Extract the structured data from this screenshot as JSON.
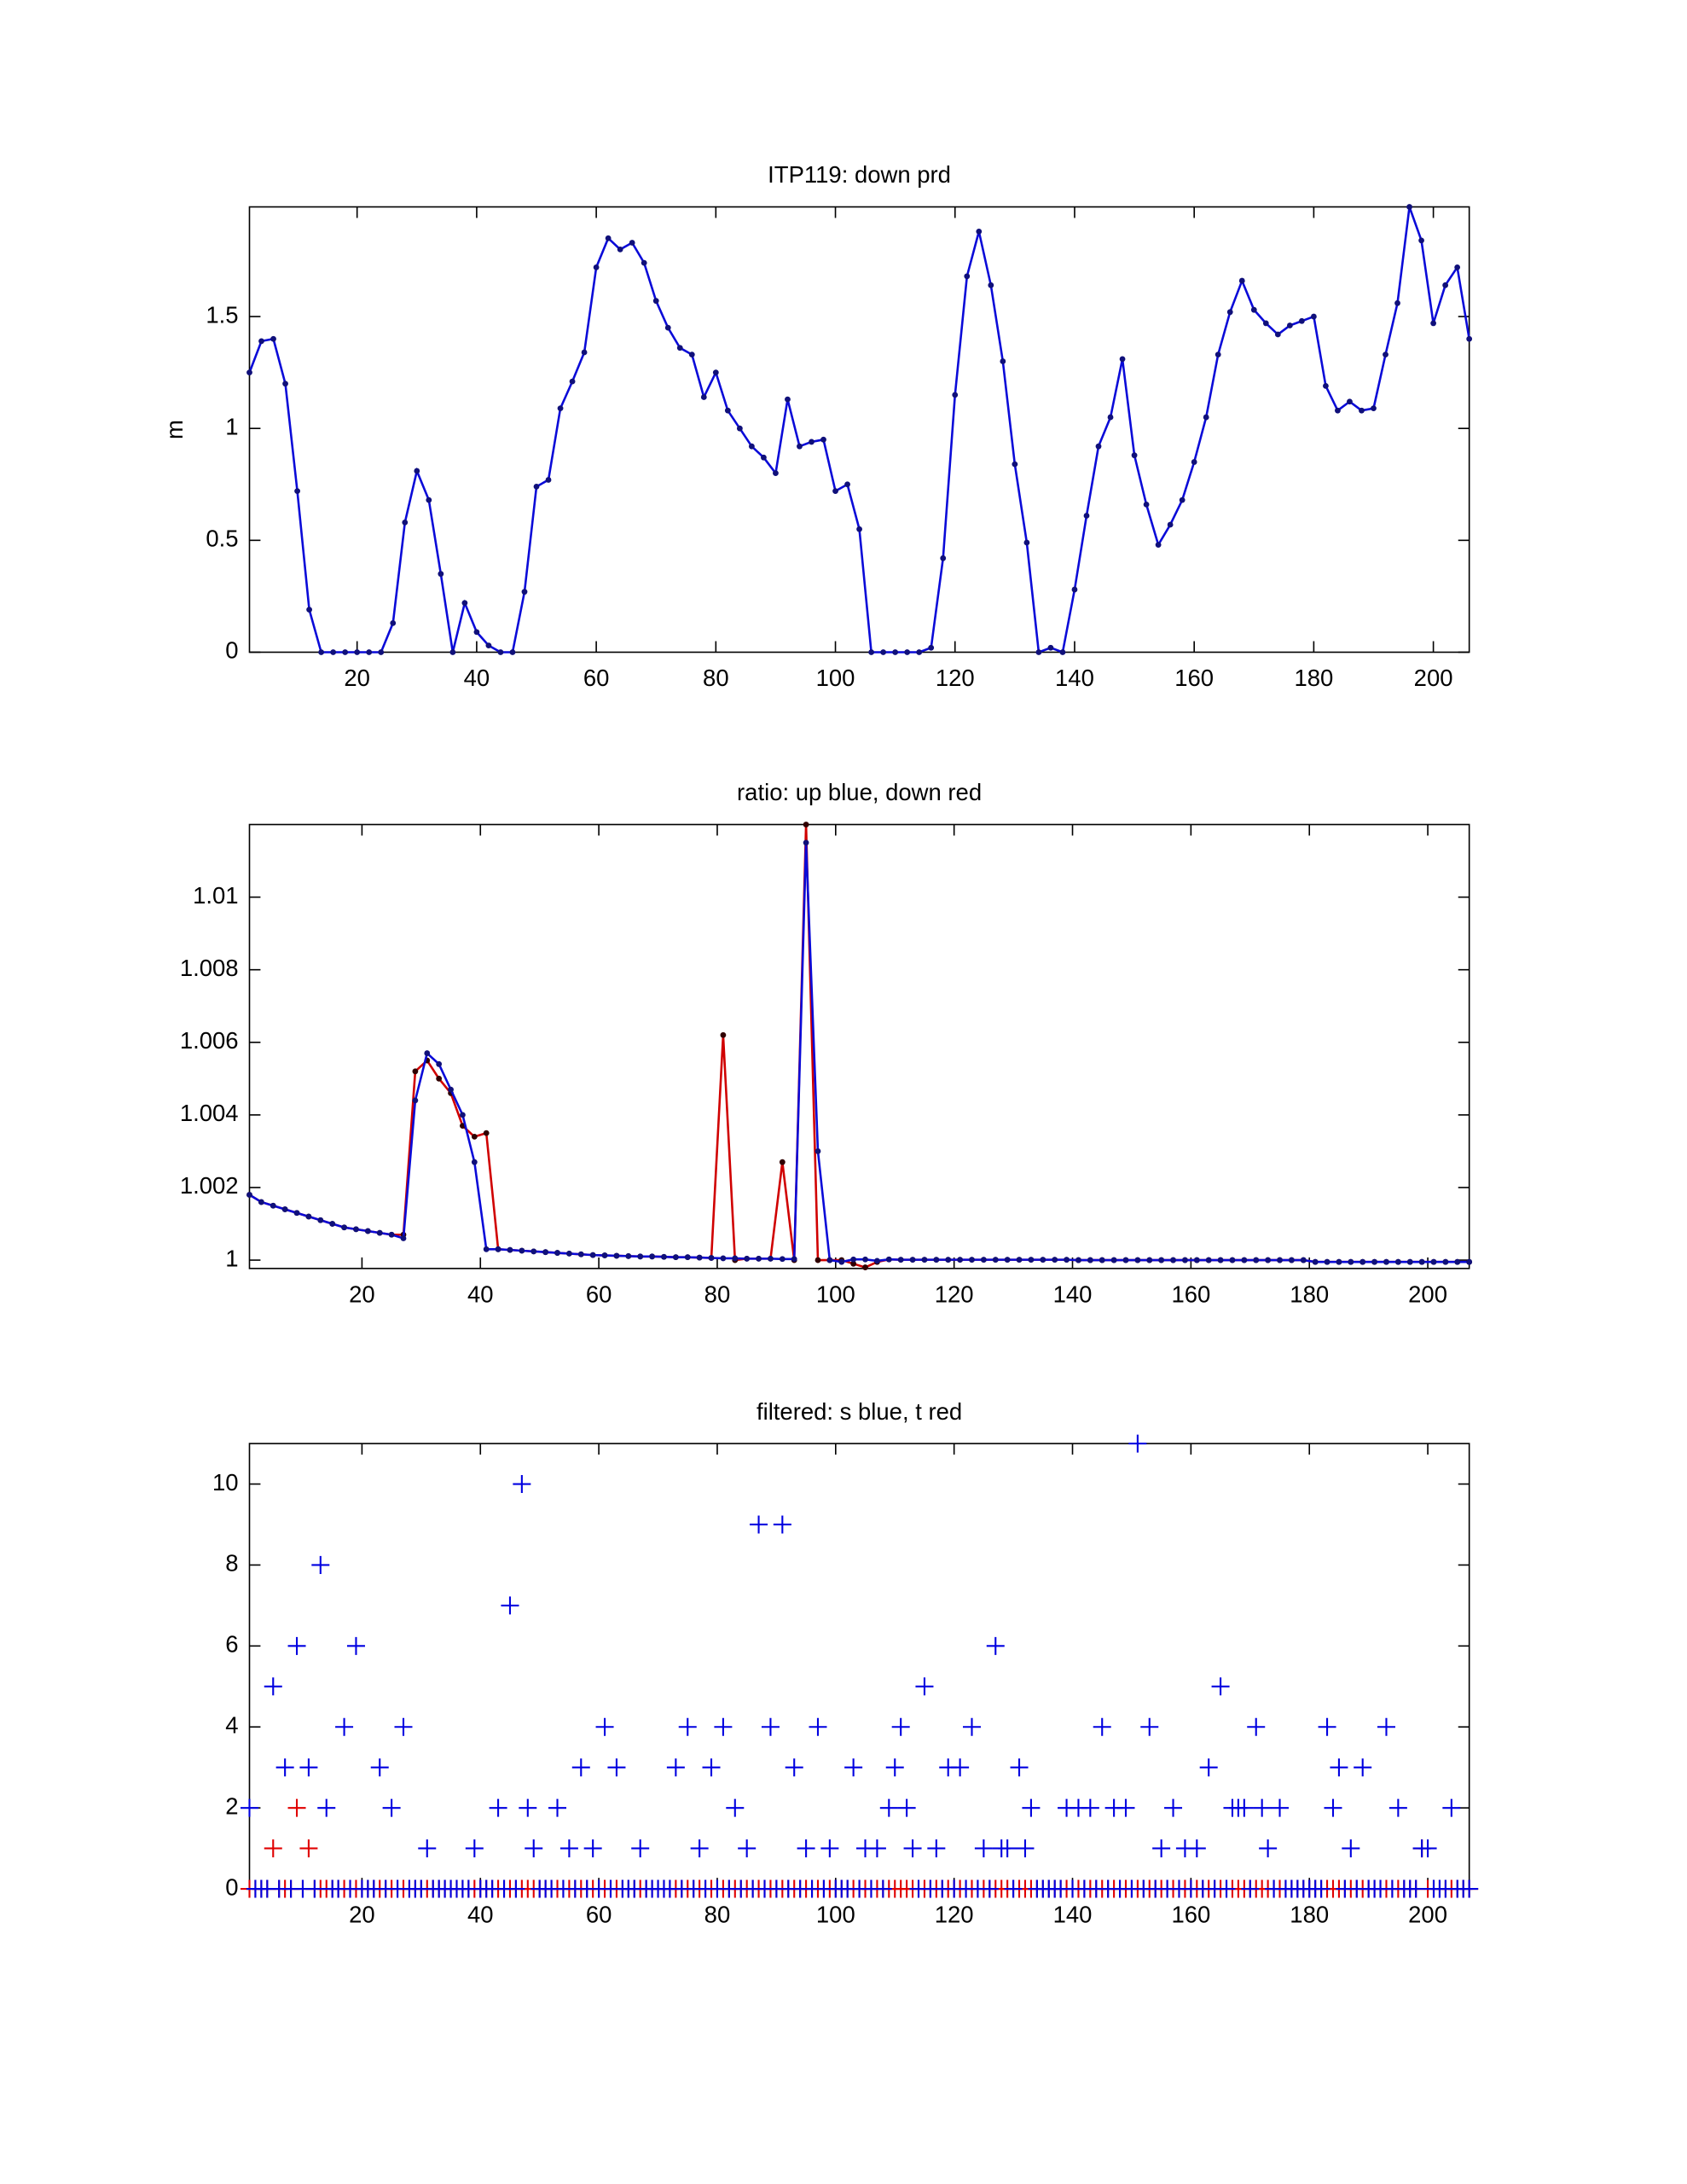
{
  "chart_data": [
    {
      "type": "line",
      "title": "ITP119: down prd",
      "y_label": "m",
      "xlim": [
        2,
        206
      ],
      "ylim": [
        0,
        1.99
      ],
      "xticks": [
        20,
        40,
        60,
        80,
        100,
        120,
        140,
        160,
        180,
        200
      ],
      "yticks": [
        0,
        0.5,
        1,
        1.5
      ],
      "x": [
        2,
        4,
        6,
        8,
        10,
        12,
        14,
        16,
        18,
        20,
        22,
        24,
        26,
        28,
        30,
        32,
        34,
        36,
        38,
        40,
        42,
        44,
        46,
        48,
        50,
        52,
        54,
        56,
        58,
        60,
        62,
        64,
        66,
        68,
        70,
        72,
        74,
        76,
        78,
        80,
        82,
        84,
        86,
        88,
        90,
        92,
        94,
        96,
        98,
        100,
        102,
        104,
        106,
        108,
        110,
        112,
        114,
        116,
        118,
        120,
        122,
        124,
        126,
        128,
        130,
        132,
        134,
        136,
        138,
        140,
        142,
        144,
        146,
        148,
        150,
        152,
        154,
        156,
        158,
        160,
        162,
        164,
        166,
        168,
        170,
        172,
        174,
        176,
        178,
        180,
        182,
        184,
        186,
        188,
        190,
        192,
        194,
        196,
        198,
        200,
        202,
        204,
        206
      ],
      "series": [
        {
          "color": "#0a0ad8",
          "marker_color": "#10107a",
          "values": [
            1.25,
            1.39,
            1.4,
            1.2,
            0.72,
            0.19,
            0,
            0,
            0,
            0,
            0,
            0,
            0.13,
            0.58,
            0.81,
            0.68,
            0.35,
            0,
            0.22,
            0.09,
            0.03,
            0,
            0,
            0.27,
            0.74,
            0.77,
            1.09,
            1.21,
            1.34,
            1.72,
            1.85,
            1.8,
            1.83,
            1.74,
            1.57,
            1.45,
            1.36,
            1.33,
            1.14,
            1.25,
            1.08,
            1.0,
            0.92,
            0.87,
            0.8,
            1.13,
            0.92,
            0.94,
            0.95,
            0.72,
            0.75,
            0.55,
            0,
            0,
            0,
            0,
            0,
            0.02,
            0.42,
            1.15,
            1.68,
            1.88,
            1.64,
            1.3,
            0.84,
            0.49,
            0,
            0.02,
            0,
            0.28,
            0.61,
            0.92,
            1.05,
            1.31,
            0.88,
            0.66,
            0.48,
            0.57,
            0.68,
            0.85,
            1.05,
            1.33,
            1.52,
            1.66,
            1.53,
            1.47,
            1.42,
            1.46,
            1.48,
            1.5,
            1.19,
            1.08,
            1.12,
            1.08,
            1.09,
            1.33,
            1.56,
            1.99,
            1.84,
            1.47,
            1.64,
            1.72,
            1.4
          ]
        }
      ]
    },
    {
      "type": "line",
      "title": "ratio: up blue, down red",
      "xlim": [
        1,
        207
      ],
      "ylim": [
        0.99977,
        1.012
      ],
      "xticks": [
        20,
        40,
        60,
        80,
        100,
        120,
        140,
        160,
        180,
        200
      ],
      "yticks": [
        1,
        1.002,
        1.004,
        1.006,
        1.008,
        1.01
      ],
      "x": [
        1,
        3,
        5,
        7,
        9,
        11,
        13,
        15,
        17,
        19,
        21,
        23,
        25,
        27,
        29,
        31,
        33,
        35,
        37,
        39,
        41,
        43,
        45,
        47,
        49,
        51,
        53,
        55,
        57,
        59,
        61,
        63,
        65,
        67,
        69,
        71,
        73,
        75,
        77,
        79,
        81,
        83,
        85,
        87,
        89,
        91,
        93,
        95,
        97,
        99,
        101,
        103,
        105,
        107,
        109,
        111,
        113,
        115,
        117,
        119,
        121,
        123,
        125,
        127,
        129,
        131,
        133,
        135,
        137,
        139,
        141,
        143,
        145,
        147,
        149,
        151,
        153,
        155,
        157,
        159,
        161,
        163,
        165,
        167,
        169,
        171,
        173,
        175,
        177,
        179,
        181,
        183,
        185,
        187,
        189,
        191,
        193,
        195,
        197,
        199,
        201,
        203,
        205,
        207
      ],
      "series": [
        {
          "color": "#d00000",
          "marker_color": "#300000",
          "values": [
            1.0018,
            1.0016,
            1.0015,
            1.0014,
            1.0013,
            1.0012,
            1.0011,
            1.001,
            1.0009,
            1.00085,
            1.0008,
            1.00075,
            1.0007,
            1.0007,
            1.0052,
            1.0055,
            1.005,
            1.0046,
            1.0037,
            1.0034,
            1.0035,
            1.0003,
            1.00028,
            1.00026,
            1.00024,
            1.00022,
            1.0002,
            1.00018,
            1.00016,
            1.00014,
            1.00013,
            1.00012,
            1.00011,
            1.0001,
            1.0001,
            1.00009,
            1.00008,
            1.00008,
            1.00007,
            1.00006,
            1.0062,
            1.0,
            1.00004,
            1.00004,
            1.00004,
            1.0027,
            1.0,
            1.012,
            1.0,
            1.0,
            1.0,
            0.9999,
            0.9998,
            0.99995,
            1.00002,
            1.00001,
            1.00001,
            1.00001,
            1.00001,
            1.00001,
            1.00001,
            1.00001,
            1.00001,
            1.00001,
            1.00001,
            1.00001,
            1.00001,
            1.00001,
            1.00001,
            1.00001,
            1.0,
            1.0,
            1.0,
            1.0,
            1.0,
            1.0,
            1.0,
            1.0,
            1.0,
            1.0,
            1.0,
            1.0,
            1.0,
            1.0,
            1.0,
            1.0,
            1.0,
            1.0,
            1.0,
            1.0,
            0.99995,
            0.99995,
            0.99995,
            0.99995,
            0.99995,
            0.99995,
            0.99995,
            0.99995,
            0.99995,
            0.99995,
            0.99995,
            0.99995,
            0.99995,
            0.99995
          ]
        },
        {
          "color": "#0a0ad8",
          "marker_color": "#10107a",
          "values": [
            1.0018,
            1.0016,
            1.0015,
            1.0014,
            1.0013,
            1.0012,
            1.0011,
            1.001,
            1.0009,
            1.00085,
            1.0008,
            1.00075,
            1.0007,
            1.0006,
            1.0044,
            1.0057,
            1.0054,
            1.0047,
            1.004,
            1.0027,
            1.0003,
            1.0003,
            1.00028,
            1.00026,
            1.00024,
            1.00022,
            1.0002,
            1.00018,
            1.00016,
            1.00014,
            1.00013,
            1.00012,
            1.00011,
            1.0001,
            1.0001,
            1.00009,
            1.00008,
            1.00008,
            1.00007,
            1.00006,
            1.00005,
            1.00005,
            1.00004,
            1.00004,
            1.00004,
            1.00003,
            1.00003,
            1.0115,
            1.003,
            1.0,
            0.99995,
            1.00002,
            1.00002,
            0.99998,
            1.00002,
            1.00001,
            1.00001,
            1.00001,
            1.00001,
            1.00001,
            1.00001,
            1.00001,
            1.00001,
            1.00001,
            1.00001,
            1.00001,
            1.00001,
            1.00001,
            1.00001,
            1.00001,
            1.0,
            1.0,
            1.0,
            1.0,
            1.0,
            1.0,
            1.0,
            1.0,
            1.0,
            1.0,
            1.0,
            1.0,
            1.0,
            1.0,
            1.0,
            1.0,
            1.0,
            1.0,
            1.0,
            1.0,
            0.99995,
            0.99995,
            0.99995,
            0.99995,
            0.99995,
            0.99995,
            0.99995,
            0.99995,
            0.99995,
            0.99995,
            0.99995,
            0.99995,
            0.99995,
            0.99995
          ]
        }
      ]
    },
    {
      "type": "scatter",
      "title": "filtered: s blue, t red",
      "xlim": [
        1,
        207
      ],
      "ylim": [
        0,
        11
      ],
      "xticks": [
        20,
        40,
        60,
        80,
        100,
        120,
        140,
        160,
        180,
        200
      ],
      "yticks": [
        0,
        2,
        4,
        6,
        8,
        10
      ],
      "x": [
        1,
        2,
        3,
        4,
        5,
        6,
        7,
        8,
        9,
        10,
        11,
        12,
        13,
        14,
        15,
        16,
        17,
        18,
        19,
        20,
        21,
        22,
        23,
        24,
        25,
        26,
        27,
        28,
        29,
        30,
        31,
        32,
        33,
        34,
        35,
        36,
        37,
        38,
        39,
        40,
        41,
        42,
        43,
        44,
        45,
        46,
        47,
        48,
        49,
        50,
        51,
        52,
        53,
        54,
        55,
        56,
        57,
        58,
        59,
        60,
        61,
        62,
        63,
        64,
        65,
        66,
        67,
        68,
        69,
        70,
        71,
        72,
        73,
        74,
        75,
        76,
        77,
        78,
        79,
        80,
        81,
        82,
        83,
        84,
        85,
        86,
        87,
        88,
        89,
        90,
        91,
        92,
        93,
        94,
        95,
        96,
        97,
        98,
        99,
        100,
        101,
        102,
        103,
        104,
        105,
        106,
        107,
        108,
        109,
        110,
        111,
        112,
        113,
        114,
        115,
        116,
        117,
        118,
        119,
        120,
        121,
        122,
        123,
        124,
        125,
        126,
        127,
        128,
        129,
        130,
        131,
        132,
        133,
        134,
        135,
        136,
        137,
        138,
        139,
        140,
        141,
        142,
        143,
        144,
        145,
        146,
        147,
        148,
        149,
        150,
        151,
        152,
        153,
        154,
        155,
        156,
        157,
        158,
        159,
        160,
        161,
        162,
        163,
        164,
        165,
        166,
        167,
        168,
        169,
        170,
        171,
        172,
        173,
        174,
        175,
        176,
        177,
        178,
        179,
        180,
        181,
        182,
        183,
        184,
        185,
        186,
        187,
        188,
        189,
        190,
        191,
        192,
        193,
        194,
        195,
        196,
        197,
        198,
        199,
        200,
        201,
        202,
        203,
        204,
        205,
        206,
        207
      ],
      "series": [
        {
          "color": "#e00000",
          "values": [
            0,
            0,
            0,
            0,
            1,
            0,
            0,
            0,
            2,
            0,
            1,
            0,
            0,
            0,
            0,
            0,
            0,
            0,
            0,
            0,
            0,
            0,
            0,
            0,
            0,
            0,
            0,
            0,
            0,
            0,
            0,
            0,
            0,
            0,
            0,
            0,
            0,
            0,
            0,
            0,
            0,
            0,
            0,
            0,
            0,
            0,
            0,
            0,
            0,
            0,
            0,
            0,
            0,
            0,
            0,
            0,
            0,
            0,
            0,
            0,
            0,
            0,
            0,
            0,
            0,
            0,
            0,
            0,
            0,
            0,
            0,
            0,
            0,
            0,
            0,
            0,
            0,
            0,
            0,
            0,
            0,
            0,
            0,
            0,
            0,
            0,
            0,
            0,
            0,
            0,
            0,
            0,
            0,
            0,
            0,
            0,
            0,
            0,
            0,
            0,
            0,
            0,
            0,
            0,
            0,
            0,
            0,
            0,
            0,
            0,
            0,
            0,
            0,
            0,
            0,
            0,
            0,
            0,
            0,
            0,
            0,
            0,
            0,
            0,
            0,
            0,
            0,
            0,
            0,
            0,
            0,
            0,
            0,
            0,
            0,
            0,
            0,
            0,
            0,
            0,
            0,
            0,
            0,
            0,
            0,
            0,
            0,
            0,
            0,
            0,
            0,
            0,
            0,
            0,
            0,
            0,
            0,
            0,
            0,
            0,
            0,
            0,
            0,
            0,
            0,
            0,
            0,
            0,
            0,
            0,
            0,
            0,
            0,
            0,
            0,
            0,
            0,
            0,
            0,
            0,
            0,
            0,
            0,
            0,
            0,
            0,
            0,
            0,
            0,
            0,
            0,
            0,
            0,
            0,
            0,
            0,
            0,
            0,
            1,
            0,
            0,
            0,
            0,
            0,
            0,
            0,
            0
          ]
        },
        {
          "color": "#0000e0",
          "values": [
            2,
            0,
            0,
            0,
            5,
            0,
            3,
            0,
            6,
            0,
            3,
            0,
            8,
            2,
            0,
            0,
            4,
            0,
            6,
            0,
            0,
            0,
            3,
            0,
            2,
            0,
            4,
            0,
            0,
            0,
            1,
            0,
            0,
            0,
            0,
            0,
            0,
            0,
            1,
            0,
            0,
            0,
            2,
            0,
            7,
            0,
            10,
            2,
            1,
            0,
            0,
            0,
            2,
            0,
            1,
            0,
            3,
            0,
            1,
            0,
            4,
            0,
            3,
            0,
            0,
            0,
            1,
            0,
            0,
            0,
            0,
            0,
            3,
            0,
            4,
            0,
            1,
            0,
            3,
            0,
            4,
            0,
            2,
            0,
            1,
            0,
            9,
            0,
            4,
            0,
            9,
            0,
            3,
            0,
            1,
            0,
            4,
            0,
            1,
            0,
            0,
            0,
            3,
            0,
            1,
            0,
            1,
            0,
            2,
            3,
            4,
            2,
            1,
            0,
            5,
            0,
            1,
            0,
            3,
            0,
            3,
            0,
            4,
            0,
            1,
            0,
            6,
            1,
            1,
            0,
            3,
            1,
            2,
            0,
            0,
            0,
            0,
            0,
            2,
            0,
            2,
            0,
            2,
            0,
            4,
            0,
            2,
            0,
            2,
            0,
            11,
            0,
            4,
            0,
            1,
            0,
            2,
            0,
            1,
            0,
            1,
            0,
            3,
            0,
            5,
            0,
            2,
            2,
            2,
            0,
            4,
            2,
            1,
            0,
            2,
            0,
            0,
            0,
            0,
            0,
            0,
            0,
            4,
            2,
            3,
            0,
            1,
            0,
            3,
            0,
            0,
            0,
            4,
            0,
            2,
            0,
            0,
            0,
            1,
            1,
            0,
            0,
            0,
            2,
            0,
            0,
            0
          ]
        }
      ]
    }
  ]
}
